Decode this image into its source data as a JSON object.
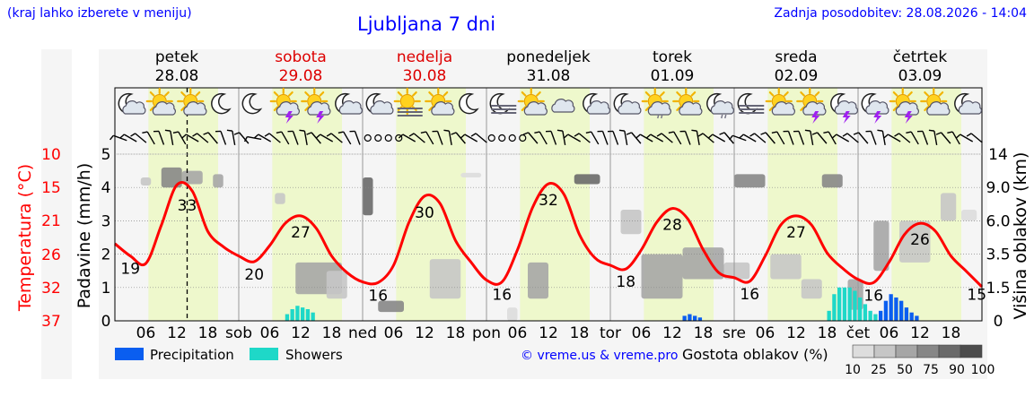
{
  "header": {
    "hint": "(kraj lahko izberete v meniju)",
    "title": "Ljubljana 7 dni",
    "updated": "Zadnja posodobitev: 28.08.2026 - 14:04"
  },
  "chart_data": {
    "type": "line",
    "title": "Ljubljana 7 dni",
    "hours_total": 168,
    "days": [
      {
        "name": "petek",
        "date": "28.08",
        "weekend": false
      },
      {
        "name": "sobota",
        "date": "29.08",
        "weekend": true
      },
      {
        "name": "nedelja",
        "date": "30.08",
        "weekend": true
      },
      {
        "name": "ponedeljek",
        "date": "31.08",
        "weekend": false
      },
      {
        "name": "torek",
        "date": "01.09",
        "weekend": false
      },
      {
        "name": "sreda",
        "date": "02.09",
        "weekend": false
      },
      {
        "name": "četrtek",
        "date": "03.09",
        "weekend": false
      }
    ],
    "x_tick_labels": [
      [
        "06",
        "12",
        "18",
        "sob"
      ],
      [
        "06",
        "12",
        "18",
        "ned"
      ],
      [
        "06",
        "12",
        "18",
        "pon"
      ],
      [
        "06",
        "12",
        "18",
        "tor"
      ],
      [
        "06",
        "12",
        "18",
        "sre"
      ],
      [
        "06",
        "12",
        "18",
        "čet"
      ],
      [
        "06",
        "12",
        "18",
        ""
      ]
    ],
    "temperature_axis": {
      "label": "Temperatura (°C)",
      "ticks": [
        10,
        15,
        21,
        26,
        32,
        37
      ]
    },
    "precip_axis": {
      "label": "Padavine (mm/h)",
      "ticks": [
        0,
        1,
        2,
        3,
        4,
        5
      ],
      "range": [
        0,
        5
      ]
    },
    "cloud_axis": {
      "label": "Višina oblakov (km)",
      "ticks": [
        "0",
        "1.5",
        "3.5",
        "6.0",
        "9.0",
        "14"
      ]
    },
    "temperature": {
      "hours": [
        0,
        3,
        6,
        9,
        12,
        15,
        18,
        21,
        24,
        27,
        30,
        33,
        36,
        39,
        42,
        45,
        48,
        51,
        54,
        57,
        60,
        63,
        66,
        69,
        72,
        75,
        78,
        81,
        84,
        87,
        90,
        93,
        96,
        99,
        102,
        105,
        108,
        111,
        114,
        117,
        120,
        123,
        126,
        129,
        132,
        135,
        138,
        141,
        144,
        147,
        150,
        153,
        156,
        159,
        162,
        165,
        168
      ],
      "values": [
        22.5,
        20.5,
        19.3,
        25.5,
        32.0,
        31.0,
        24.5,
        22.0,
        20.5,
        19.6,
        22.2,
        25.8,
        27.0,
        25.0,
        20.5,
        17.8,
        16.3,
        16.2,
        19.0,
        26.0,
        30.2,
        29.0,
        23.0,
        19.5,
        16.6,
        16.3,
        21.5,
        28.5,
        32.2,
        30.5,
        24.0,
        20.2,
        19.0,
        18.4,
        21.5,
        26.0,
        28.2,
        26.5,
        21.5,
        17.8,
        17.0,
        16.4,
        20.5,
        25.5,
        27.0,
        25.5,
        21.0,
        18.5,
        16.7,
        16.2,
        19.5,
        24.0,
        25.8,
        24.5,
        20.5,
        18.0,
        15.5
      ],
      "labels": [
        {
          "hour": 3,
          "text": "19"
        },
        {
          "hour": 14,
          "text": "33"
        },
        {
          "hour": 27,
          "text": "20"
        },
        {
          "hour": 36,
          "text": "27"
        },
        {
          "hour": 51,
          "text": "16"
        },
        {
          "hour": 60,
          "text": "30"
        },
        {
          "hour": 75,
          "text": "16"
        },
        {
          "hour": 84,
          "text": "32"
        },
        {
          "hour": 99,
          "text": "18"
        },
        {
          "hour": 108,
          "text": "28"
        },
        {
          "hour": 123,
          "text": "16"
        },
        {
          "hour": 132,
          "text": "27"
        },
        {
          "hour": 147,
          "text": "16"
        },
        {
          "hour": 156,
          "text": "26"
        },
        {
          "hour": 167,
          "text": "15"
        }
      ]
    },
    "current_hour": 14,
    "daylight": {
      "start_hour": 6.5,
      "end_hour": 20
    },
    "shower_color": "#1ed8c8",
    "precip_color": "#0a5ef0",
    "showers": [
      {
        "hour": 33,
        "mm": 0.2
      },
      {
        "hour": 34,
        "mm": 0.35
      },
      {
        "hour": 35,
        "mm": 0.45
      },
      {
        "hour": 36,
        "mm": 0.4
      },
      {
        "hour": 37,
        "mm": 0.35
      },
      {
        "hour": 38,
        "mm": 0.25
      },
      {
        "hour": 138,
        "mm": 0.3
      },
      {
        "hour": 139,
        "mm": 0.8
      },
      {
        "hour": 140,
        "mm": 1.0
      },
      {
        "hour": 141,
        "mm": 1.0
      },
      {
        "hour": 142,
        "mm": 1.0
      },
      {
        "hour": 143,
        "mm": 0.9
      },
      {
        "hour": 144,
        "mm": 0.7
      },
      {
        "hour": 145,
        "mm": 0.5
      },
      {
        "hour": 146,
        "mm": 0.3
      },
      {
        "hour": 147,
        "mm": 0.2
      }
    ],
    "precipitation": [
      {
        "hour": 110,
        "mm": 0.15
      },
      {
        "hour": 111,
        "mm": 0.2
      },
      {
        "hour": 112,
        "mm": 0.15
      },
      {
        "hour": 113,
        "mm": 0.1
      },
      {
        "hour": 148,
        "mm": 0.3
      },
      {
        "hour": 149,
        "mm": 0.6
      },
      {
        "hour": 150,
        "mm": 0.8
      },
      {
        "hour": 151,
        "mm": 0.7
      },
      {
        "hour": 152,
        "mm": 0.6
      },
      {
        "hour": 153,
        "mm": 0.4
      },
      {
        "hour": 154,
        "mm": 0.25
      },
      {
        "hour": 155,
        "mm": 0.15
      }
    ],
    "clouds": [
      {
        "h": 5,
        "w": 2,
        "lo": 9.3,
        "hi": 10.5,
        "d": 25
      },
      {
        "h": 9,
        "w": 4,
        "lo": 9.0,
        "hi": 12.0,
        "d": 75
      },
      {
        "h": 13,
        "w": 4,
        "lo": 9.5,
        "hi": 11.5,
        "d": 50
      },
      {
        "h": 19,
        "w": 2,
        "lo": 9.0,
        "hi": 11.0,
        "d": 50
      },
      {
        "h": 31,
        "w": 2,
        "lo": 7.5,
        "hi": 8.5,
        "d": 25
      },
      {
        "h": 35,
        "w": 9,
        "lo": 1.2,
        "hi": 3.0,
        "d": 50
      },
      {
        "h": 41,
        "w": 4,
        "lo": 1.0,
        "hi": 2.5,
        "d": 25
      },
      {
        "h": 48,
        "w": 2,
        "lo": 6.5,
        "hi": 10.5,
        "d": 90
      },
      {
        "h": 51,
        "w": 5,
        "lo": 0.4,
        "hi": 0.9,
        "d": 75
      },
      {
        "h": 61,
        "w": 6,
        "lo": 1.0,
        "hi": 3.2,
        "d": 25
      },
      {
        "h": 67,
        "w": 4,
        "lo": 10.5,
        "hi": 11.2,
        "d": 10
      },
      {
        "h": 76,
        "w": 2,
        "lo": 0.0,
        "hi": 0.6,
        "d": 10
      },
      {
        "h": 80,
        "w": 4,
        "lo": 1.0,
        "hi": 3.0,
        "d": 50
      },
      {
        "h": 89,
        "w": 5,
        "lo": 9.5,
        "hi": 11.0,
        "d": 90
      },
      {
        "h": 98,
        "w": 4,
        "lo": 5.0,
        "hi": 7.0,
        "d": 25
      },
      {
        "h": 102,
        "w": 8,
        "lo": 1.0,
        "hi": 3.5,
        "d": 50
      },
      {
        "h": 110,
        "w": 8,
        "lo": 2.0,
        "hi": 4.0,
        "d": 50
      },
      {
        "h": 118,
        "w": 5,
        "lo": 2.0,
        "hi": 3.0,
        "d": 25
      },
      {
        "h": 120,
        "w": 6,
        "lo": 9.0,
        "hi": 11.0,
        "d": 75
      },
      {
        "h": 127,
        "w": 6,
        "lo": 2.0,
        "hi": 3.5,
        "d": 25
      },
      {
        "h": 133,
        "w": 4,
        "lo": 1.0,
        "hi": 2.0,
        "d": 25
      },
      {
        "h": 137,
        "w": 4,
        "lo": 9.0,
        "hi": 11.0,
        "d": 75
      },
      {
        "h": 142,
        "w": 3,
        "lo": 0.5,
        "hi": 2.0,
        "d": 50
      },
      {
        "h": 147,
        "w": 3,
        "lo": 2.5,
        "hi": 6.0,
        "d": 50
      },
      {
        "h": 152,
        "w": 6,
        "lo": 3.0,
        "hi": 6.0,
        "d": 25
      },
      {
        "h": 160,
        "w": 3,
        "lo": 6.0,
        "hi": 8.5,
        "d": 25
      },
      {
        "h": 164,
        "w": 3,
        "lo": 6.0,
        "hi": 7.0,
        "d": 10
      }
    ],
    "icons_per_day": [
      [
        "moon-cloud-icon",
        "sun-cloud-icon",
        "sun-cloud-icon",
        "moon-icon"
      ],
      [
        "moon-icon",
        "sun-storm-icon",
        "sun-storm-icon",
        "moon-cloud-icon"
      ],
      [
        "moon-cloud-icon",
        "sun-fog-icon",
        "sun-cloud-icon",
        "moon-icon"
      ],
      [
        "moon-fog-icon",
        "sun-cloud-icon",
        "cloud-icon",
        "moon-cloud-icon"
      ],
      [
        "moon-cloud-icon",
        "sun-drizzle-icon",
        "sun-cloud-icon",
        "moon-rain-icon"
      ],
      [
        "moon-fog-icon",
        "sun-cloud-icon",
        "sun-storm-icon",
        "moon-storm-icon"
      ],
      [
        "moon-storm-icon",
        "sun-storm-icon",
        "sun-cloud-icon",
        "moon-cloud-icon"
      ]
    ],
    "wind_dirs": [
      290,
      300,
      310,
      330,
      340,
      350,
      330,
      300,
      310,
      320,
      340,
      350,
      320,
      280,
      300,
      310,
      330,
      340,
      350,
      320,
      300,
      310,
      330,
      340,
      0,
      0,
      0,
      0,
      300,
      310,
      330,
      340,
      350,
      320,
      300,
      310,
      0,
      0,
      0,
      0,
      320,
      330,
      340,
      350,
      300,
      310,
      330,
      340,
      340,
      350,
      320,
      300,
      300,
      310,
      330,
      340,
      350,
      310,
      300,
      320,
      290,
      300,
      310,
      320,
      330,
      340,
      340,
      350,
      320,
      330,
      300,
      310,
      320,
      340,
      350,
      300,
      310,
      330,
      340,
      350,
      320,
      330,
      300,
      310
    ],
    "legend": {
      "precip_label": "Precipitation",
      "shower_label": "Showers",
      "copyright": "© vreme.us & vreme.pro",
      "cloud_density_label": "Gostota oblakov (%)",
      "cloud_density_steps": [
        "10",
        "25",
        "50",
        "75",
        "90",
        "100"
      ],
      "cloud_density_colors": [
        "#dddddd",
        "#c6c6c6",
        "#a6a6a6",
        "#878787",
        "#6a6a6a",
        "#4c4c4c"
      ]
    },
    "colors": {
      "temperature_line": "#ff0000",
      "daylight": "#eef8cc",
      "night": "#f5f5f5",
      "weekend_text": "#dd0000",
      "axis_text": "#000000"
    }
  }
}
